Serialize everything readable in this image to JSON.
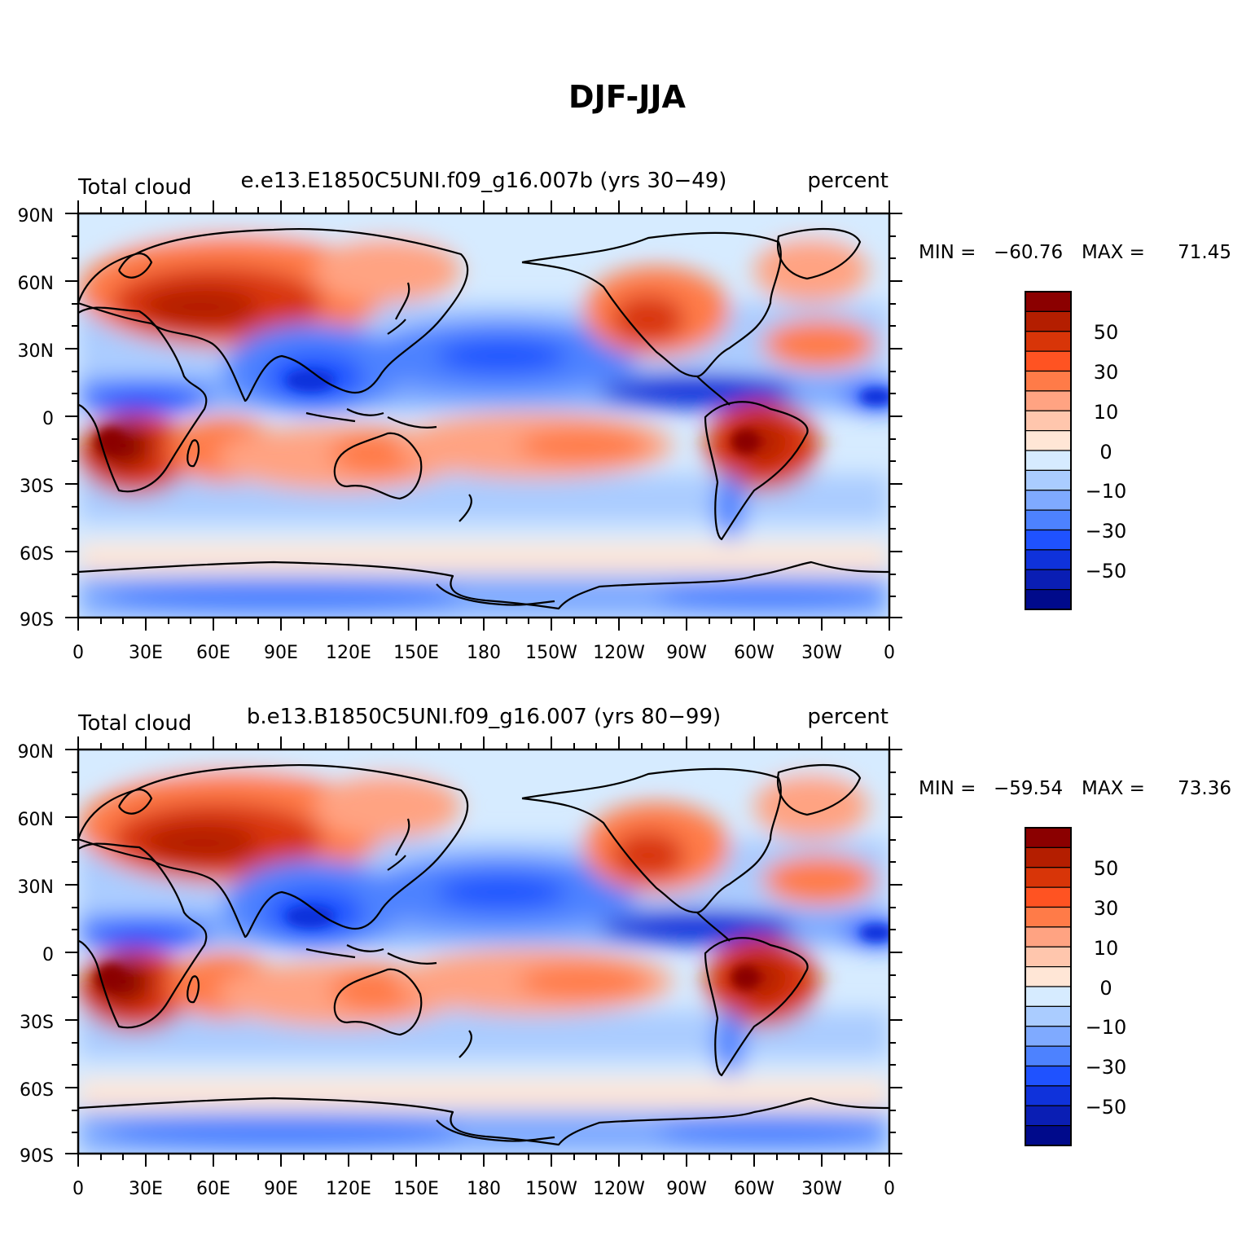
{
  "figure": {
    "title": "DJF-JJA"
  },
  "panels": [
    {
      "id": "top",
      "left_label": "Total cloud",
      "center_label": "e.e13.E1850C5UNI.f09_g16.007b (yrs 30−49)",
      "right_label": "percent",
      "min_label": "MIN =",
      "min_value": "−60.76",
      "max_label": "MAX =",
      "max_value": "71.45"
    },
    {
      "id": "bottom",
      "left_label": "Total cloud",
      "center_label": "b.e13.B1850C5UNI.f09_g16.007 (yrs 80−99)",
      "right_label": "percent",
      "min_label": "MIN =",
      "min_value": "−59.54",
      "max_label": "MAX =",
      "max_value": "73.36"
    }
  ],
  "axes": {
    "lat_ticks": [
      "90N",
      "60N",
      "30N",
      "0",
      "30S",
      "60S",
      "90S"
    ],
    "lon_ticks": [
      "0",
      "30E",
      "60E",
      "90E",
      "120E",
      "150E",
      "180",
      "150W",
      "120W",
      "90W",
      "60W",
      "30W",
      "0"
    ]
  },
  "colorbar": {
    "labels": [
      "50",
      "30",
      "10",
      "0",
      "−10",
      "−30",
      "−50"
    ],
    "colors": [
      "#8b0000",
      "#b41e00",
      "#d83508",
      "#ff5322",
      "#ff7b48",
      "#ffa382",
      "#ffc6ad",
      "#ffe6d6",
      "#d6ebff",
      "#aaccff",
      "#7faaff",
      "#4d82ff",
      "#1f52ff",
      "#0f32db",
      "#0a1eb4",
      "#000a8b"
    ]
  },
  "chart_data": [
    {
      "type": "heatmap",
      "title": "e.e13.E1850C5UNI.f09_g16.007b (yrs 30−49)",
      "variable": "Total cloud",
      "units": "percent",
      "min": -60.76,
      "max": 71.45,
      "xlabel": "",
      "ylabel": "",
      "contour_levels": [
        -70,
        -60,
        -50,
        -40,
        -30,
        -20,
        -10,
        -5,
        0,
        5,
        10,
        20,
        30,
        40,
        50,
        60,
        70
      ]
    },
    {
      "type": "heatmap",
      "title": "b.e13.B1850C5UNI.f09_g16.007 (yrs 80−99)",
      "variable": "Total cloud",
      "units": "percent",
      "min": -59.54,
      "max": 73.36,
      "xlabel": "",
      "ylabel": "",
      "contour_levels": [
        -70,
        -60,
        -50,
        -40,
        -30,
        -20,
        -10,
        -5,
        0,
        5,
        10,
        20,
        30,
        40,
        50,
        60,
        70
      ]
    }
  ]
}
